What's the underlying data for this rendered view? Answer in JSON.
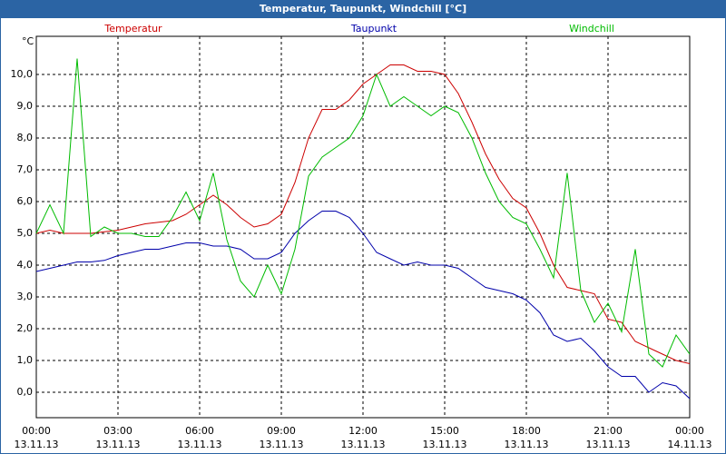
{
  "window_title": "Temperatur, Taupunkt, Windchill [°C]",
  "chart_data": {
    "type": "line",
    "y_unit": "°C",
    "x": [
      0,
      0.5,
      1,
      1.5,
      2,
      2.5,
      3,
      3.5,
      4,
      4.5,
      5,
      5.5,
      6,
      6.5,
      7,
      7.5,
      8,
      8.5,
      9,
      9.5,
      10,
      10.5,
      11,
      11.5,
      12,
      12.5,
      13,
      13.5,
      14,
      14.5,
      15,
      15.5,
      16,
      16.5,
      17,
      17.5,
      18,
      18.5,
      19,
      19.5,
      20,
      20.5,
      21,
      21.5,
      22,
      22.5,
      23,
      23.5,
      24
    ],
    "series": [
      {
        "name": "Temperatur",
        "color": "#cc0000",
        "values": [
          5.0,
          5.1,
          5.0,
          5.0,
          5.0,
          5.05,
          5.1,
          5.2,
          5.3,
          5.35,
          5.4,
          5.6,
          5.9,
          6.2,
          5.9,
          5.5,
          5.2,
          5.3,
          5.6,
          6.6,
          8.0,
          8.9,
          8.9,
          9.2,
          9.7,
          10.0,
          10.3,
          10.3,
          10.1,
          10.1,
          10.0,
          9.4,
          8.5,
          7.5,
          6.7,
          6.1,
          5.8,
          5.0,
          4.0,
          3.3,
          3.2,
          3.1,
          2.3,
          2.2,
          1.6,
          1.4,
          1.2,
          1.0,
          0.9
        ]
      },
      {
        "name": "Taupunkt",
        "color": "#0000aa",
        "values": [
          3.8,
          3.9,
          4.0,
          4.1,
          4.1,
          4.15,
          4.3,
          4.4,
          4.5,
          4.5,
          4.6,
          4.7,
          4.7,
          4.6,
          4.6,
          4.5,
          4.2,
          4.2,
          4.4,
          5.0,
          5.4,
          5.7,
          5.7,
          5.5,
          5.0,
          4.4,
          4.2,
          4.0,
          4.1,
          4.0,
          4.0,
          3.9,
          3.6,
          3.3,
          3.2,
          3.1,
          2.9,
          2.5,
          1.8,
          1.6,
          1.7,
          1.3,
          0.8,
          0.5,
          0.5,
          0.0,
          0.3,
          0.2,
          -0.2
        ]
      },
      {
        "name": "Windchill",
        "color": "#00bb00",
        "values": [
          5.0,
          5.9,
          5.0,
          10.5,
          4.9,
          5.2,
          5.0,
          5.0,
          4.9,
          4.9,
          5.5,
          6.3,
          5.4,
          6.9,
          4.8,
          3.5,
          3.0,
          4.0,
          3.1,
          4.5,
          6.8,
          7.4,
          7.7,
          8.0,
          8.7,
          10.0,
          9.0,
          9.3,
          9.0,
          8.7,
          9.0,
          8.8,
          8.0,
          6.9,
          6.0,
          5.5,
          5.3,
          4.5,
          3.6,
          6.9,
          3.2,
          2.2,
          2.8,
          1.9,
          4.5,
          1.2,
          0.8,
          1.8,
          1.2
        ]
      }
    ],
    "xlim": [
      0,
      24
    ],
    "xticks": [
      {
        "value": 0,
        "label": "00:00",
        "date": "13.11.13"
      },
      {
        "value": 3,
        "label": "03:00",
        "date": "13.11.13"
      },
      {
        "value": 6,
        "label": "06:00",
        "date": "13.11.13"
      },
      {
        "value": 9,
        "label": "09:00",
        "date": "13.11.13"
      },
      {
        "value": 12,
        "label": "12:00",
        "date": "13.11.13"
      },
      {
        "value": 15,
        "label": "15:00",
        "date": "13.11.13"
      },
      {
        "value": 18,
        "label": "18:00",
        "date": "13.11.13"
      },
      {
        "value": 21,
        "label": "21:00",
        "date": "13.11.13"
      },
      {
        "value": 24,
        "label": "00:00",
        "date": "14.11.13"
      }
    ],
    "ylim": [
      -0.8,
      11.2
    ],
    "yticks": [
      {
        "value": 0,
        "label": "0,0"
      },
      {
        "value": 1,
        "label": "1,0"
      },
      {
        "value": 2,
        "label": "2,0"
      },
      {
        "value": 3,
        "label": "3,0"
      },
      {
        "value": 4,
        "label": "4,0"
      },
      {
        "value": 5,
        "label": "5,0"
      },
      {
        "value": 6,
        "label": "6,0"
      },
      {
        "value": 7,
        "label": "7,0"
      },
      {
        "value": 8,
        "label": "8,0"
      },
      {
        "value": 9,
        "label": "9,0"
      },
      {
        "value": 10,
        "label": "10,0"
      }
    ],
    "grid": true
  }
}
